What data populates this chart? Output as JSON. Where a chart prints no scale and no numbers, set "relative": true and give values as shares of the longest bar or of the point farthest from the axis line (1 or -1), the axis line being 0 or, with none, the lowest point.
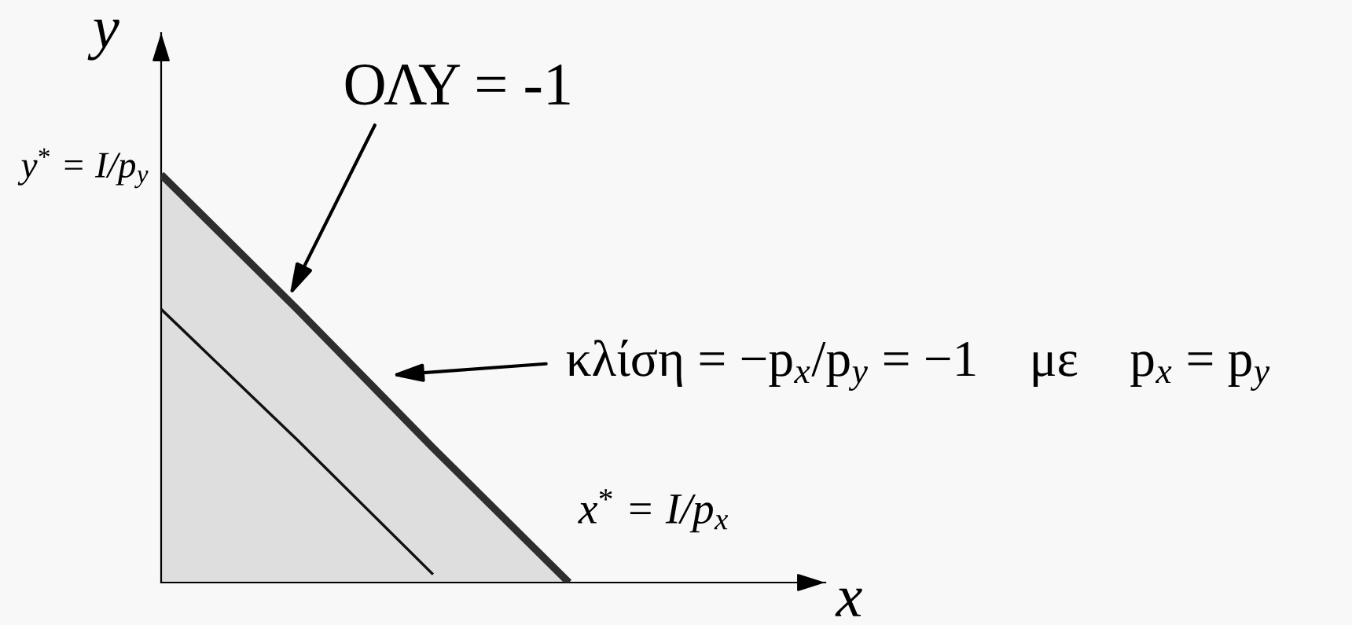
{
  "chart_data": {
    "type": "line",
    "relative": true,
    "xlabel": "x",
    "ylabel": "y",
    "categories": [
      null,
      null,
      null,
      null
    ],
    "series": [
      {
        "type": "area",
        "color": "#2e2e2e",
        "values": [
          1,
          0.67,
          0.33,
          0
        ]
      },
      {
        "color": "#111111",
        "values": [
          0.67,
          0.35,
          0.02,
          null
        ]
      }
    ],
    "annotations": [
      "ΟΛΥ = -1",
      "κλίση = −p$_{x}$/p$_{y}$ = −1    με    p$_{x}$ = p$_{y}$",
      "x$^{*}$ = I/p$_{x}$",
      "y$^{*}$ = I/p$_{y}$"
    ]
  }
}
